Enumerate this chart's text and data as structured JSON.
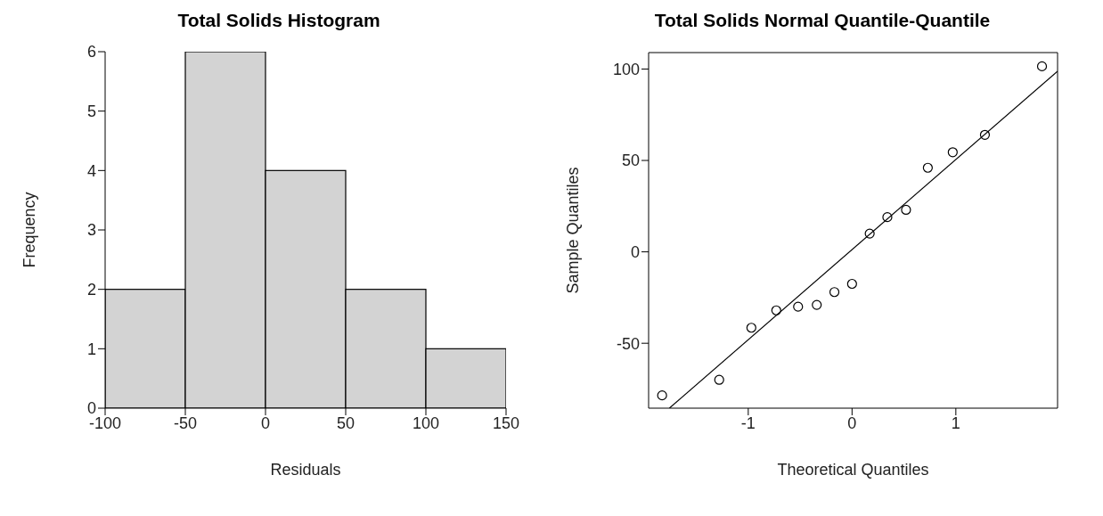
{
  "chart_data": [
    {
      "type": "histogram",
      "title": "Total Solids Histogram",
      "xlabel": "Residuals",
      "ylabel": "Frequency",
      "bins": [
        -100,
        -50,
        0,
        50,
        100,
        150
      ],
      "values": [
        2,
        6,
        4,
        2,
        1
      ],
      "color": "#d3d3d3",
      "xlim": [
        -100,
        150
      ],
      "xticks": [
        -100,
        -50,
        0,
        50,
        100,
        150
      ],
      "ylim": [
        0,
        6
      ],
      "yticks": [
        0,
        1,
        2,
        3,
        4,
        5,
        6
      ]
    },
    {
      "type": "scatter",
      "title": "Total Solids Normal Quantile-Quantile",
      "xlabel": "Theoretical Quantiles",
      "ylabel": "Sample Quantiles",
      "x": [
        -1.83,
        -1.28,
        -0.97,
        -0.73,
        -0.52,
        -0.34,
        -0.17,
        0,
        0.17,
        0.34,
        0.52,
        0.73,
        0.97,
        1.28,
        1.83
      ],
      "series": [
        {
          "type": "scatter",
          "color": "#000000",
          "values": [
            -78.5,
            -70,
            -41.5,
            -32,
            -30,
            -29,
            -22,
            -17.5,
            10,
            19,
            23,
            46,
            54.5,
            64,
            101.5
          ]
        },
        {
          "type": "line",
          "color": "#000000",
          "marker": "none",
          "x": [
            -1.76,
            1.98
          ],
          "values": [
            -85.5,
            98.8
          ]
        }
      ],
      "marker": "circle",
      "xlim": [
        -1.96,
        1.98
      ],
      "xticks": [
        -1,
        0,
        1
      ],
      "ylim": [
        -85.5,
        109
      ],
      "yticks": [
        -50,
        0,
        50,
        100
      ]
    }
  ]
}
